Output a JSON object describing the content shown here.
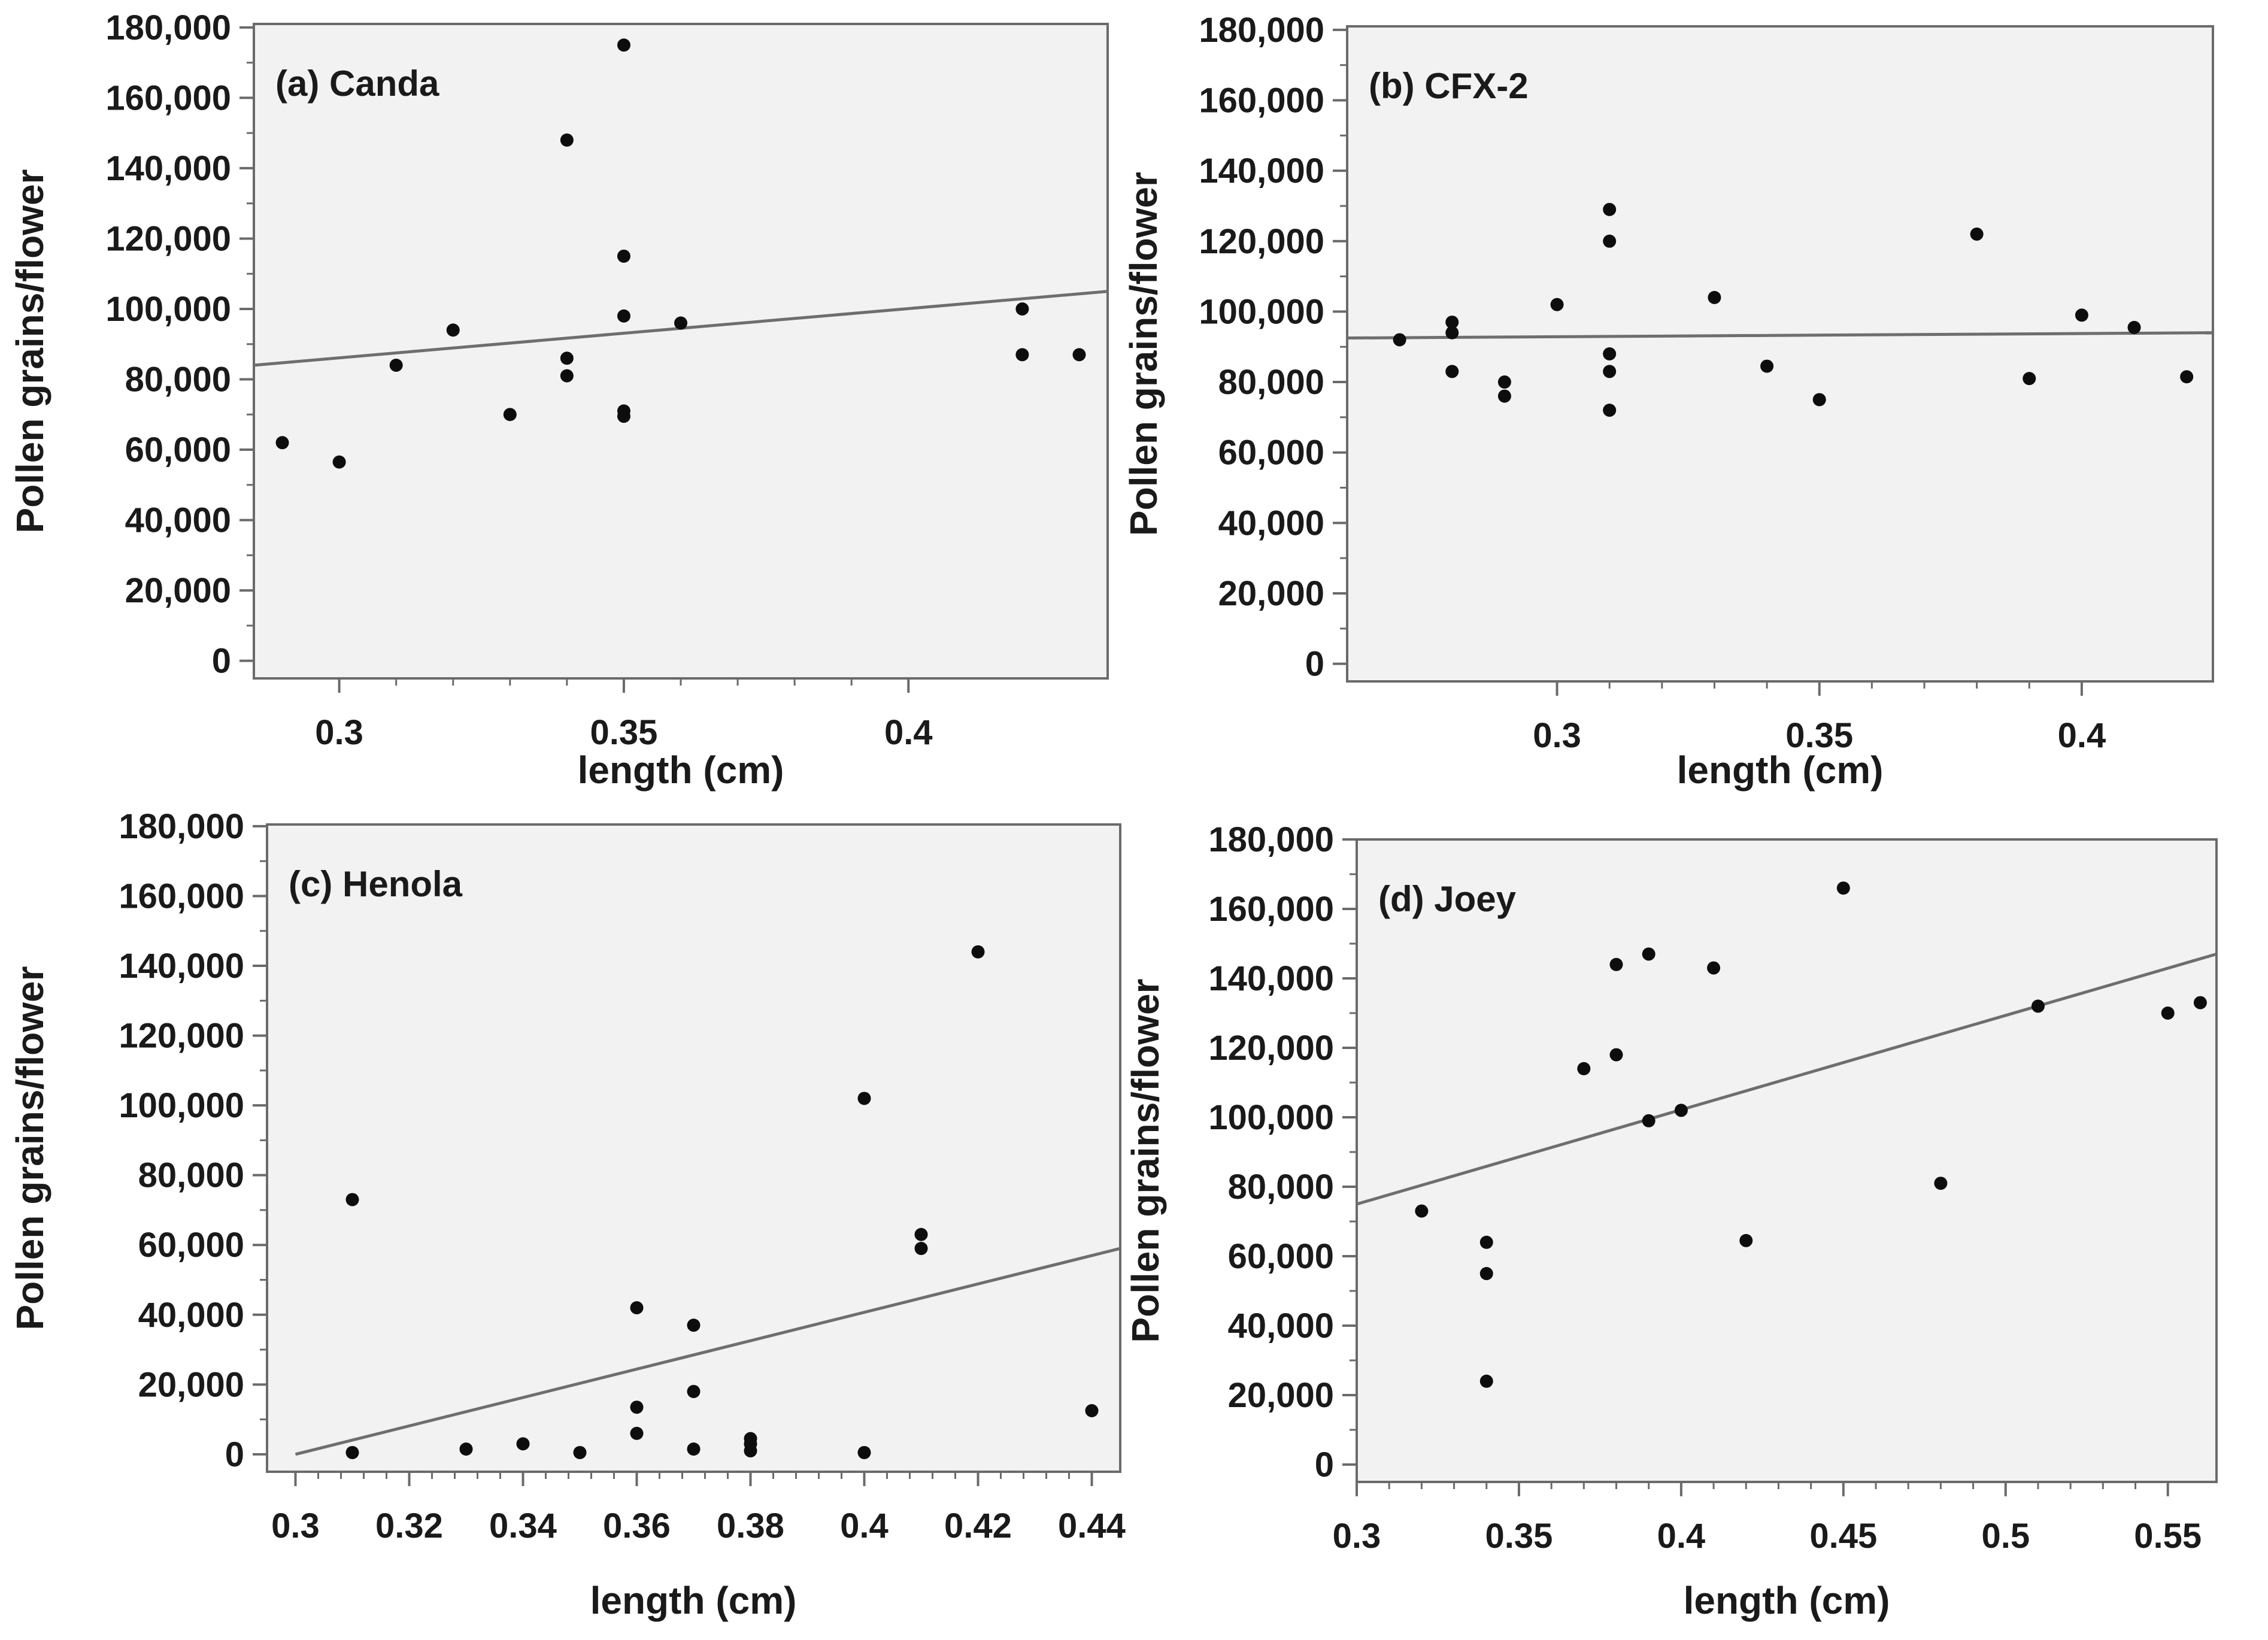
{
  "colors": {
    "plot_bg": "#f2f2f2",
    "frame": "#6a6a6a",
    "point": "#0d0d0d",
    "trend": "#6e6e6e",
    "text": "#1a1a1a"
  },
  "chart_data": [
    {
      "type": "scatter",
      "title": "(a) Canda",
      "xlabel": "length (cm)",
      "ylabel": "Pollen grains/flower",
      "xlim": [
        0.285,
        0.435
      ],
      "ylim": [
        -5000,
        181000
      ],
      "xticks": [
        0.3,
        0.35,
        0.4
      ],
      "xtick_labels": [
        "0.3",
        "0.35",
        "0.4"
      ],
      "yticks": [
        0,
        20000,
        40000,
        60000,
        80000,
        100000,
        120000,
        140000,
        160000,
        180000
      ],
      "ytick_labels": [
        "0",
        "20,000",
        "40,000",
        "60,000",
        "80,000",
        "100,000",
        "120,000",
        "140,000",
        "160,000",
        "180,000"
      ],
      "points": {
        "x": [
          0.29,
          0.3,
          0.31,
          0.32,
          0.33,
          0.34,
          0.34,
          0.34,
          0.35,
          0.35,
          0.35,
          0.35,
          0.35,
          0.36,
          0.42,
          0.42,
          0.43
        ],
        "y": [
          62000,
          56500,
          84000,
          94000,
          70000,
          148000,
          86000,
          81000,
          175000,
          115000,
          98000,
          71000,
          69500,
          96000,
          100000,
          87000,
          87000
        ]
      },
      "trend": {
        "x": [
          0.285,
          0.435
        ],
        "y": [
          84000,
          105000
        ]
      }
    },
    {
      "type": "scatter",
      "title": "(b) CFX-2",
      "xlabel": "length (cm)",
      "ylabel": "Pollen grains/flower",
      "xlim": [
        0.26,
        0.425
      ],
      "ylim": [
        -5000,
        181000
      ],
      "xticks": [
        0.3,
        0.35,
        0.4
      ],
      "xtick_labels": [
        "0.3",
        "0.35",
        "0.4"
      ],
      "yticks": [
        0,
        20000,
        40000,
        60000,
        80000,
        100000,
        120000,
        140000,
        160000,
        180000
      ],
      "ytick_labels": [
        "0",
        "20,000",
        "40,000",
        "60,000",
        "80,000",
        "100,000",
        "120,000",
        "140,000",
        "160,000",
        "180,000"
      ],
      "points": {
        "x": [
          0.27,
          0.28,
          0.28,
          0.28,
          0.29,
          0.29,
          0.3,
          0.31,
          0.31,
          0.31,
          0.31,
          0.31,
          0.33,
          0.34,
          0.35,
          0.38,
          0.39,
          0.4,
          0.41,
          0.42
        ],
        "y": [
          92000,
          97000,
          94000,
          83000,
          80000,
          76000,
          102000,
          129000,
          120000,
          88000,
          83000,
          72000,
          104000,
          84500,
          75000,
          122000,
          81000,
          99000,
          95500,
          81500
        ],
        "trend_note": ""
      },
      "trend": {
        "x": [
          0.26,
          0.425
        ],
        "y": [
          92500,
          94000
        ]
      }
    },
    {
      "type": "scatter",
      "title": "(c) Henola",
      "xlabel": "length (cm)",
      "ylabel": "Pollen grains/flower",
      "xlim": [
        0.295,
        0.445
      ],
      "ylim": [
        -5000,
        180500
      ],
      "xticks": [
        0.3,
        0.32,
        0.34,
        0.36,
        0.38,
        0.4,
        0.42,
        0.44
      ],
      "xtick_labels": [
        "0.3",
        "0.32",
        "0.34",
        "0.36",
        "0.38",
        "0.4",
        "0.42",
        "0.44"
      ],
      "yticks": [
        0,
        20000,
        40000,
        60000,
        80000,
        100000,
        120000,
        140000,
        160000,
        180000
      ],
      "ytick_labels": [
        "0",
        "20,000",
        "40,000",
        "60,000",
        "80,000",
        "100,000",
        "120,000",
        "140,000",
        "160,000",
        "180,000"
      ],
      "points": {
        "x": [
          0.31,
          0.31,
          0.33,
          0.34,
          0.35,
          0.36,
          0.36,
          0.36,
          0.37,
          0.37,
          0.37,
          0.38,
          0.38,
          0.38,
          0.4,
          0.4,
          0.41,
          0.41,
          0.42,
          0.44
        ],
        "y": [
          73000,
          500,
          1500,
          3000,
          500,
          42000,
          13500,
          6000,
          37000,
          18000,
          1500,
          4500,
          3000,
          1000,
          102000,
          500,
          63000,
          59000,
          144000,
          12500
        ]
      },
      "trend": {
        "x": [
          0.3,
          0.445
        ],
        "y": [
          0,
          59000
        ]
      }
    },
    {
      "type": "scatter",
      "title": "(d) Joey",
      "xlabel": "length (cm)",
      "ylabel": "Pollen grains/flower",
      "xlim": [
        0.3,
        0.565
      ],
      "ylim": [
        -5000,
        180000
      ],
      "xticks": [
        0.3,
        0.35,
        0.4,
        0.45,
        0.5,
        0.55
      ],
      "xtick_labels": [
        "0.3",
        "0.35",
        "0.4",
        "0.45",
        "0.5",
        "0.55"
      ],
      "yticks": [
        0,
        20000,
        40000,
        60000,
        80000,
        100000,
        120000,
        140000,
        160000,
        180000
      ],
      "ytick_labels": [
        "0",
        "20,000",
        "40,000",
        "60,000",
        "80,000",
        "100,000",
        "120,000",
        "140,000",
        "160,000",
        "180,000"
      ],
      "points": {
        "x": [
          0.32,
          0.34,
          0.34,
          0.34,
          0.37,
          0.38,
          0.38,
          0.39,
          0.39,
          0.4,
          0.41,
          0.42,
          0.45,
          0.48,
          0.51,
          0.55,
          0.56
        ],
        "y": [
          73000,
          64000,
          55000,
          24000,
          114000,
          144000,
          118000,
          147000,
          99000,
          102000,
          143000,
          64500,
          166000,
          81000,
          132000,
          130000,
          133000
        ]
      },
      "trend": {
        "x": [
          0.3,
          0.565
        ],
        "y": [
          75000,
          147000
        ]
      }
    }
  ]
}
